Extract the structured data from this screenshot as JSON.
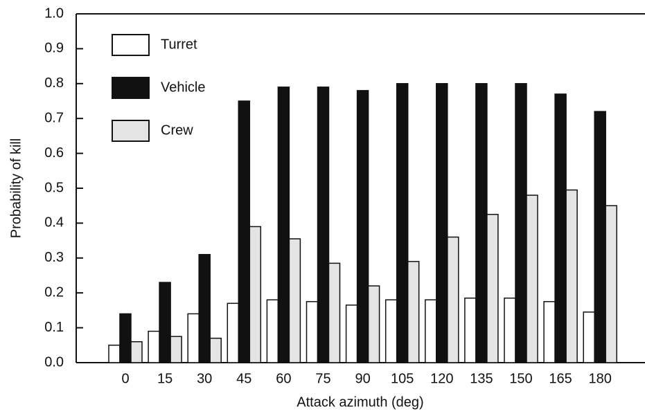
{
  "chart_data": {
    "type": "bar",
    "x_label": "Attack azimuth (deg)",
    "y_label": "Probability of kill",
    "categories": [
      "0",
      "15",
      "30",
      "45",
      "60",
      "75",
      "90",
      "105",
      "120",
      "135",
      "150",
      "165",
      "180"
    ],
    "series": [
      {
        "name": "Turret",
        "color": "#ffffff",
        "values": [
          0.05,
          0.09,
          0.14,
          0.17,
          0.18,
          0.175,
          0.165,
          0.18,
          0.18,
          0.185,
          0.185,
          0.175,
          0.145
        ]
      },
      {
        "name": "Vehicle",
        "color": "#111111",
        "values": [
          0.14,
          0.23,
          0.31,
          0.75,
          0.79,
          0.79,
          0.78,
          0.8,
          0.8,
          0.8,
          0.8,
          0.77,
          0.72
        ]
      },
      {
        "name": "Crew",
        "color": "#e4e4e4",
        "values": [
          0.06,
          0.075,
          0.07,
          0.39,
          0.355,
          0.285,
          0.22,
          0.29,
          0.36,
          0.425,
          0.48,
          0.495,
          0.45
        ]
      }
    ],
    "ylim": [
      0,
      1
    ],
    "yticks": [
      {
        "value": 0,
        "label": "0.0"
      },
      {
        "value": 0.1,
        "label": "0.1"
      },
      {
        "value": 0.2,
        "label": "0.2"
      },
      {
        "value": 0.3,
        "label": "0.3"
      },
      {
        "value": 0.4,
        "label": "0.4"
      },
      {
        "value": 0.5,
        "label": "0.5"
      },
      {
        "value": 0.6,
        "label": "0.6"
      },
      {
        "value": 0.7,
        "label": "0.7"
      },
      {
        "value": 0.8,
        "label": "0.8"
      },
      {
        "value": 0.9,
        "label": "0.9"
      },
      {
        "value": 1,
        "label": "1.0"
      }
    ],
    "legend": "upper left"
  }
}
